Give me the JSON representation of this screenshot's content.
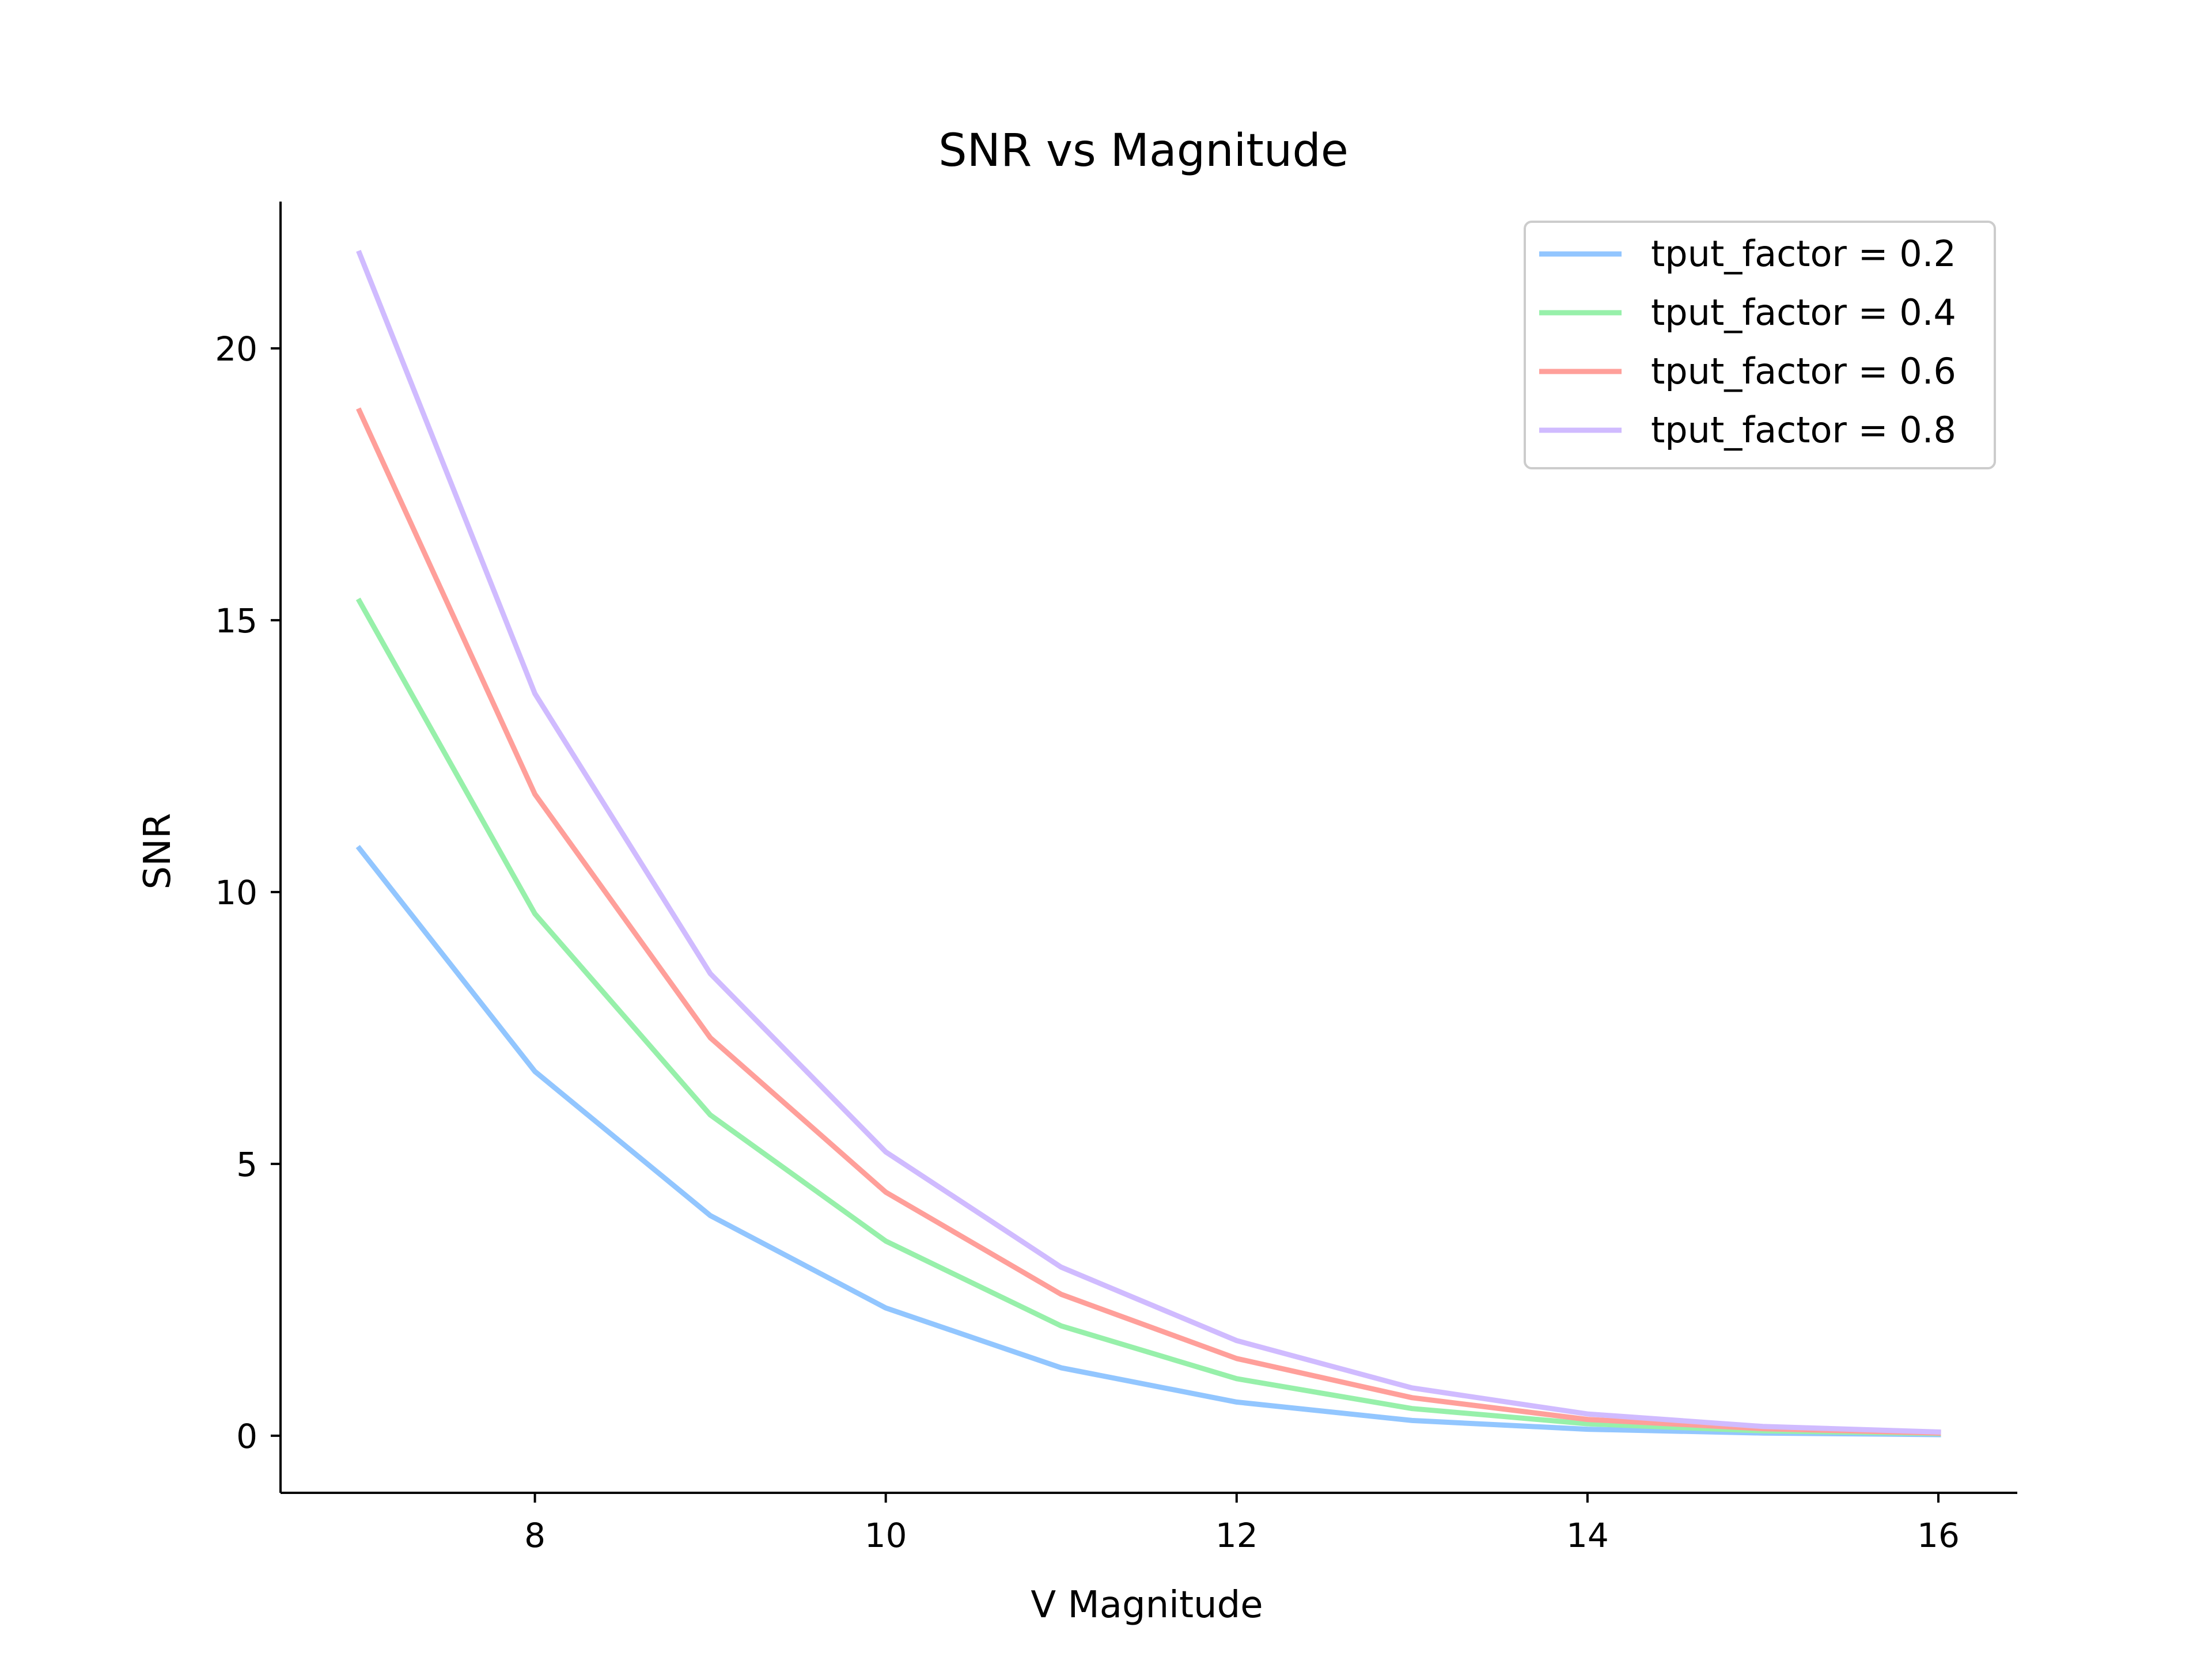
{
  "chart_data": {
    "type": "line",
    "title": "SNR vs Magnitude",
    "xlabel": "V Magnitude",
    "ylabel": "SNR",
    "xlim": [
      6.55,
      16.45
    ],
    "ylim": [
      -1.05,
      22.7
    ],
    "xticks": [
      8,
      10,
      12,
      14,
      16
    ],
    "yticks": [
      0,
      5,
      10,
      15,
      20
    ],
    "x": [
      7,
      8,
      9,
      10,
      11,
      12,
      13,
      14,
      15,
      16
    ],
    "grid": false,
    "legend_position": "top-right",
    "series": [
      {
        "name": "tput_factor = 0.2",
        "color": "#92c6ff",
        "values": [
          10.8,
          6.7,
          4.05,
          2.35,
          1.25,
          0.62,
          0.28,
          0.12,
          0.05,
          0.02
        ]
      },
      {
        "name": "tput_factor = 0.4",
        "color": "#97f0aa",
        "values": [
          15.35,
          9.6,
          5.9,
          3.58,
          2.02,
          1.05,
          0.5,
          0.22,
          0.09,
          0.04
        ]
      },
      {
        "name": "tput_factor = 0.6",
        "color": "#ff9f9a",
        "values": [
          18.85,
          11.8,
          7.32,
          4.48,
          2.6,
          1.42,
          0.7,
          0.3,
          0.13,
          0.05
        ]
      },
      {
        "name": "tput_factor = 0.8",
        "color": "#d0bbff",
        "values": [
          21.75,
          13.65,
          8.5,
          5.22,
          3.1,
          1.75,
          0.88,
          0.4,
          0.17,
          0.07
        ]
      }
    ]
  }
}
